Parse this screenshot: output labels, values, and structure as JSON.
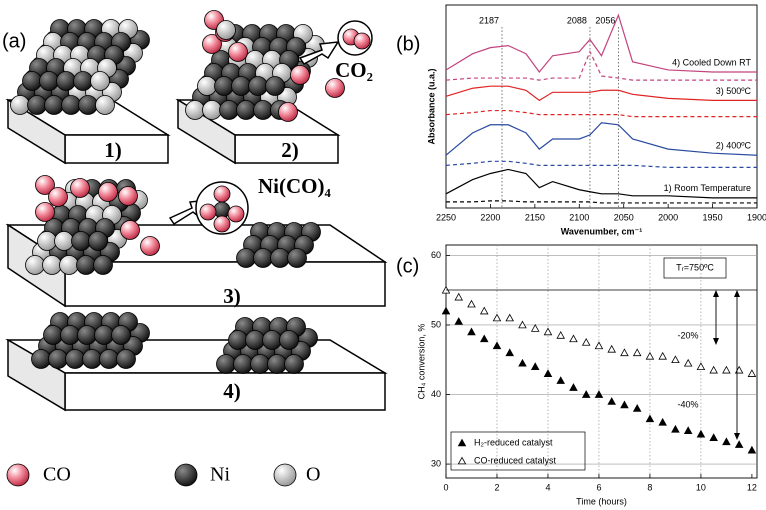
{
  "panel_a": {
    "label": "(a)",
    "steps": [
      "1)",
      "2)",
      "3)",
      "4)"
    ],
    "products": [
      "CO₂",
      "Ni(CO)₄"
    ],
    "legend": [
      "CO",
      "Ni",
      "O"
    ]
  },
  "chart_data": [
    {
      "type": "line",
      "label": "(b)",
      "xlabel": "Wavenumber, cm⁻¹",
      "ylabel": "Absorbance (u.a.)",
      "x": [
        2250,
        2220,
        2200,
        2180,
        2160,
        2145,
        2130,
        2100,
        2088,
        2075,
        2056,
        2040,
        2000,
        1950,
        1900
      ],
      "xlim": [
        2250,
        1900
      ],
      "ylim": [
        0,
        100
      ],
      "xticks": [
        2250,
        2200,
        2150,
        2100,
        2050,
        2000,
        1950,
        1900
      ],
      "reference_lines": [
        2187,
        2088,
        2056
      ],
      "series": [
        {
          "name": "4) Cooled Down RT",
          "color": "#c2447e",
          "dash": false,
          "values": [
            68,
            76,
            79,
            80,
            76,
            67,
            75,
            77,
            83,
            75,
            95,
            72,
            68,
            67,
            67
          ]
        },
        {
          "color": "#c2447e",
          "dash": true,
          "values": [
            63,
            64,
            64,
            64,
            64,
            63,
            64,
            64,
            77,
            65,
            64,
            63,
            63,
            63,
            63
          ]
        },
        {
          "name": "3) 500ºC",
          "color": "#e02424",
          "dash": false,
          "values": [
            55,
            59,
            60,
            60,
            58,
            53,
            57,
            57,
            57,
            58,
            58,
            56,
            54,
            53,
            53
          ]
        },
        {
          "color": "#e02424",
          "dash": true,
          "values": [
            46,
            47,
            48,
            48,
            47,
            46,
            46,
            46,
            46,
            46,
            46,
            45,
            45,
            45,
            45
          ]
        },
        {
          "name": "2) 400ºC",
          "color": "#2a4aa0",
          "dash": false,
          "values": [
            26,
            37,
            41,
            41,
            37,
            29,
            34,
            34,
            36,
            42,
            41,
            34,
            29,
            27,
            26
          ]
        },
        {
          "color": "#2a4aa0",
          "dash": true,
          "values": [
            21,
            22,
            23,
            23,
            22,
            21,
            21,
            21,
            21,
            21,
            21,
            21,
            20,
            20,
            20
          ]
        },
        {
          "name": "1) Room Temperature",
          "color": "#000000",
          "dash": false,
          "values": [
            7,
            14,
            17,
            19,
            17,
            10,
            13,
            9,
            8,
            7,
            7,
            6,
            6,
            5,
            5
          ]
        },
        {
          "color": "#000000",
          "dash": true,
          "values": [
            3,
            3,
            3.5,
            3.5,
            3,
            3,
            3,
            3,
            3,
            2.5,
            2.5,
            2.5,
            2.5,
            2.5,
            2.5
          ]
        }
      ]
    },
    {
      "type": "scatter",
      "label": "(c)",
      "xlabel": "Time (hours)",
      "ylabel": "CH₄ conversion, %",
      "x": [
        0,
        0.5,
        1,
        1.5,
        2,
        2.5,
        3,
        3.5,
        4,
        4.5,
        5,
        5.5,
        6,
        6.5,
        7,
        7.5,
        8,
        8.5,
        9,
        9.5,
        10,
        10.5,
        11,
        11.5,
        12
      ],
      "xlim": [
        0,
        12.2
      ],
      "ylim": [
        28,
        61.5
      ],
      "xticks": [
        0,
        2,
        4,
        6,
        8,
        10,
        12
      ],
      "yticks": [
        30,
        40,
        50,
        60
      ],
      "grid": true,
      "annotations": [
        "Tᵣ=750ºC",
        "-20%",
        "-40%"
      ],
      "series": [
        {
          "name": "H₂-reduced catalyst",
          "color": "#000000",
          "marker": "filled-triangle",
          "values": [
            52,
            50.5,
            49,
            48,
            47,
            46,
            44.5,
            44,
            43,
            42,
            41,
            40,
            40,
            39,
            38.5,
            38,
            36.5,
            36,
            35,
            34.8,
            34.3,
            33.8,
            33.2,
            32.8,
            32
          ]
        },
        {
          "name": "CO-reduced catalyst",
          "color": "#000000",
          "marker": "open-triangle",
          "values": [
            55,
            54,
            53,
            52,
            51,
            51,
            50,
            49.5,
            49,
            48.5,
            48,
            47.5,
            47,
            46.5,
            46,
            46,
            45.5,
            45.5,
            45,
            44.5,
            44,
            43.5,
            43.5,
            43.5,
            43
          ]
        }
      ]
    }
  ]
}
